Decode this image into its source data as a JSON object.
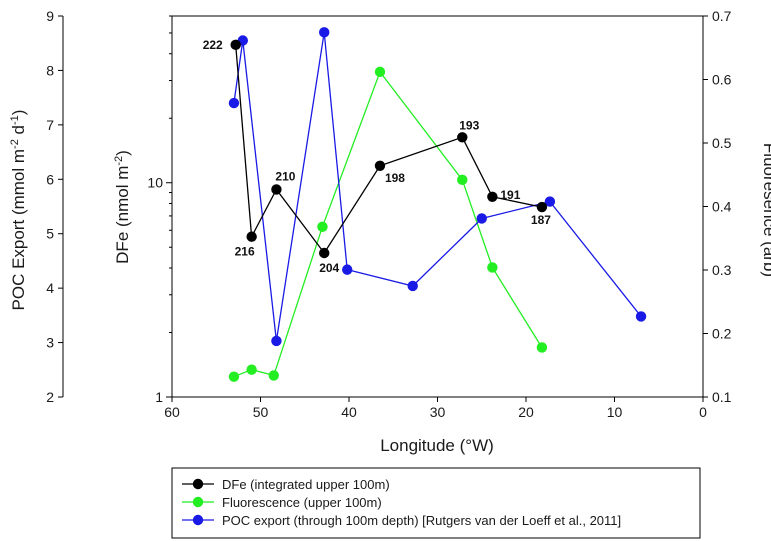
{
  "chart_data": {
    "type": "line",
    "x_axis": {
      "label": "Longitude (°W)",
      "range": [
        60,
        0
      ],
      "reversed": true,
      "ticks": [
        60,
        50,
        40,
        30,
        20,
        10,
        0
      ]
    },
    "y_left_outer": {
      "label_main": "POC Export (mmol m",
      "label_sup1": "-2",
      "label_mid": " d",
      "label_sup2": "-1",
      "label_end": ")",
      "range": [
        2,
        9
      ],
      "ticks": [
        2,
        3,
        4,
        5,
        6,
        7,
        8,
        9
      ]
    },
    "y_left_inner": {
      "label_main": "DFe (nmol m",
      "label_sup": "-2",
      "label_end": ")",
      "scale": "log",
      "range": [
        1,
        60
      ],
      "ticks": [
        1,
        10
      ]
    },
    "y_right": {
      "label": "Fluoresence (arb)",
      "range": [
        0.1,
        0.7
      ],
      "ticks": [
        0.1,
        0.2,
        0.3,
        0.4,
        0.5,
        0.6,
        0.7
      ]
    },
    "series": [
      {
        "name": "DFe (integrated upper 100m)",
        "color": "#000000",
        "axis": "y_left_inner",
        "points": [
          {
            "x": 52.8,
            "y": 44,
            "label": "222"
          },
          {
            "x": 51.0,
            "y": 5.6,
            "label": "216"
          },
          {
            "x": 48.2,
            "y": 9.3,
            "label": "210"
          },
          {
            "x": 42.8,
            "y": 4.7,
            "label": "204"
          },
          {
            "x": 36.5,
            "y": 12.0,
            "label": "198"
          },
          {
            "x": 27.2,
            "y": 16.3,
            "label": "193"
          },
          {
            "x": 23.8,
            "y": 8.6,
            "label": "191"
          },
          {
            "x": 18.2,
            "y": 7.7,
            "label": "187"
          }
        ]
      },
      {
        "name": "Fluorescence (upper 100m)",
        "color": "#22ee22",
        "axis": "y_right",
        "points": [
          {
            "x": 53.0,
            "y": 0.132
          },
          {
            "x": 51.0,
            "y": 0.143
          },
          {
            "x": 48.5,
            "y": 0.134
          },
          {
            "x": 43.0,
            "y": 0.368
          },
          {
            "x": 36.5,
            "y": 0.612
          },
          {
            "x": 27.2,
            "y": 0.442
          },
          {
            "x": 23.8,
            "y": 0.304
          },
          {
            "x": 18.2,
            "y": 0.178
          }
        ]
      },
      {
        "name": "POC export (through 100m depth) [Rutgers van der Loeff et al., 2011]",
        "color": "#1a1ae6",
        "axis": "y_left_outer",
        "points": [
          {
            "x": 53.0,
            "y": 7.4
          },
          {
            "x": 52.0,
            "y": 8.55
          },
          {
            "x": 48.2,
            "y": 3.03
          },
          {
            "x": 42.8,
            "y": 8.7
          },
          {
            "x": 40.2,
            "y": 4.34
          },
          {
            "x": 32.8,
            "y": 4.04
          },
          {
            "x": 25.0,
            "y": 5.28
          },
          {
            "x": 17.3,
            "y": 5.59
          },
          {
            "x": 7.0,
            "y": 3.48
          }
        ]
      }
    ]
  }
}
